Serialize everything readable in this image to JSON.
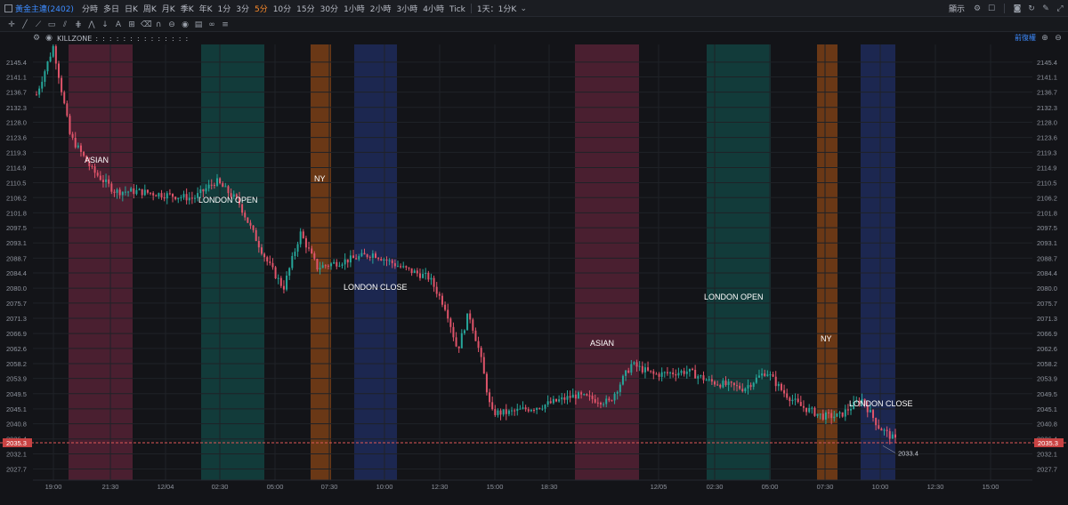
{
  "toolbar": {
    "symbol": "黃金主連(2402)",
    "timeframes": [
      "分時",
      "多日",
      "日K",
      "周K",
      "月K",
      "季K",
      "年K",
      "1分",
      "3分",
      "5分",
      "10分",
      "15分",
      "30分",
      "1小時",
      "2小時",
      "3小時",
      "4小時",
      "Tick"
    ],
    "active_timeframe": "5分",
    "range_label": "1天：1分K",
    "display_label": "顯示"
  },
  "indicator": {
    "name": "KILLZONE",
    "restore_label": "前復權"
  },
  "colors": {
    "background": "#131418",
    "up": "#26a69a",
    "down": "#e0546a",
    "asian": "#4a1f30",
    "london_open": "#123b3a",
    "ny": "#6a3816",
    "london_close": "#1c2750",
    "last_price": "#e05757"
  },
  "chart_data": {
    "type": "candlestick",
    "y_axis_ticks": [
      2145.4,
      2141.1,
      2136.7,
      2132.3,
      2128.0,
      2123.6,
      2119.3,
      2114.9,
      2110.5,
      2106.2,
      2101.8,
      2097.5,
      2093.1,
      2088.7,
      2084.4,
      2080.0,
      2075.7,
      2071.3,
      2066.9,
      2062.6,
      2058.2,
      2053.9,
      2049.5,
      2045.1,
      2040.8,
      2036.4,
      2032.1,
      2027.7
    ],
    "ylim": [
      2024.5,
      2150.5
    ],
    "x_axis_labels": [
      "19:00",
      "21:30",
      "12/04",
      "02:30",
      "05:00",
      "07:30",
      "10:00",
      "12:30",
      "15:00",
      "18:30",
      "12/05",
      "02:30",
      "05:00",
      "07:30",
      "10:00",
      "12:30",
      "15:00"
    ],
    "last_price": "2035.3",
    "low_marker": "2033.4",
    "sessions": [
      {
        "label": "ASIAN",
        "kind": "asian"
      },
      {
        "label": "LONDON OPEN",
        "kind": "london_open"
      },
      {
        "label": "NY",
        "kind": "ny"
      },
      {
        "label": "LONDON  CLOSE",
        "kind": "london_close"
      },
      {
        "label": "ASIAN",
        "kind": "asian"
      },
      {
        "label": "LONDON OPEN",
        "kind": "london_open"
      },
      {
        "label": "NY",
        "kind": "ny"
      },
      {
        "label": "LONDON  CLOSE",
        "kind": "london_close"
      }
    ],
    "price_path": [
      [
        0,
        2136
      ],
      [
        3,
        2150
      ],
      [
        6,
        2124
      ],
      [
        10,
        2114
      ],
      [
        14,
        2108
      ],
      [
        18,
        2108
      ],
      [
        23,
        2107
      ],
      [
        28,
        2106
      ],
      [
        32,
        2111
      ],
      [
        36,
        2105
      ],
      [
        38,
        2098
      ],
      [
        41,
        2088
      ],
      [
        44,
        2080
      ],
      [
        47,
        2096
      ],
      [
        50,
        2086
      ],
      [
        55,
        2088
      ],
      [
        60,
        2090
      ],
      [
        65,
        2086
      ],
      [
        70,
        2083
      ],
      [
        73,
        2074
      ],
      [
        75,
        2062
      ],
      [
        77,
        2073
      ],
      [
        79,
        2061
      ],
      [
        81,
        2044
      ],
      [
        84,
        2044
      ],
      [
        90,
        2046
      ],
      [
        96,
        2049
      ],
      [
        102,
        2047
      ],
      [
        106,
        2058
      ],
      [
        110,
        2055
      ],
      [
        116,
        2056
      ],
      [
        120,
        2053
      ],
      [
        126,
        2051
      ],
      [
        130,
        2056
      ],
      [
        133,
        2050
      ],
      [
        136,
        2046
      ],
      [
        140,
        2043
      ],
      [
        143,
        2043
      ],
      [
        147,
        2048
      ],
      [
        150,
        2040
      ],
      [
        153,
        2036
      ]
    ]
  }
}
